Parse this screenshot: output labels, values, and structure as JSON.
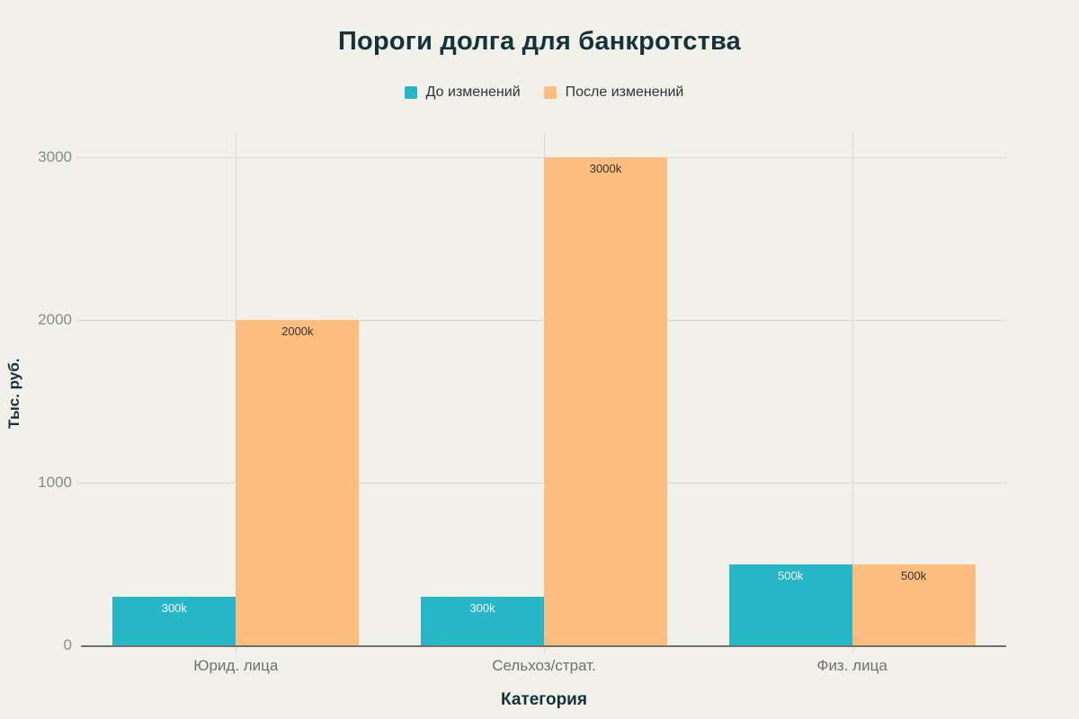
{
  "chart_data": {
    "type": "bar",
    "title": "Пороги долга для банкротства",
    "xlabel": "Категория",
    "ylabel": "Тыс. руб.",
    "categories": [
      "Юрид. лица",
      "Сельхоз/страт.",
      "Физ. лица"
    ],
    "series": [
      {
        "name": "До изменений",
        "color": "#27b5c8",
        "values": [
          300,
          300,
          500
        ],
        "labels": [
          "300k",
          "300k",
          "500k"
        ],
        "label_color": "#fbfbf6"
      },
      {
        "name": "После изменений",
        "color": "#fcbd7e",
        "values": [
          2000,
          3000,
          500
        ],
        "labels": [
          "2000k",
          "3000k",
          "500k"
        ],
        "label_color": "#333330"
      }
    ],
    "yticks": [
      0,
      1000,
      2000,
      3000
    ],
    "ytick_labels": [
      "0",
      "1000",
      "2000",
      "3000"
    ],
    "ylim": [
      0,
      3150
    ],
    "grid": true,
    "legend_position": "top-center"
  },
  "theme": {
    "background": "#f1f1ea",
    "title_color": "#13323a",
    "ytick_color": "#8b8b86",
    "xtick_color": "#6f7072",
    "grid_color": "#dbdad2",
    "axis_color": "#6e716e"
  }
}
